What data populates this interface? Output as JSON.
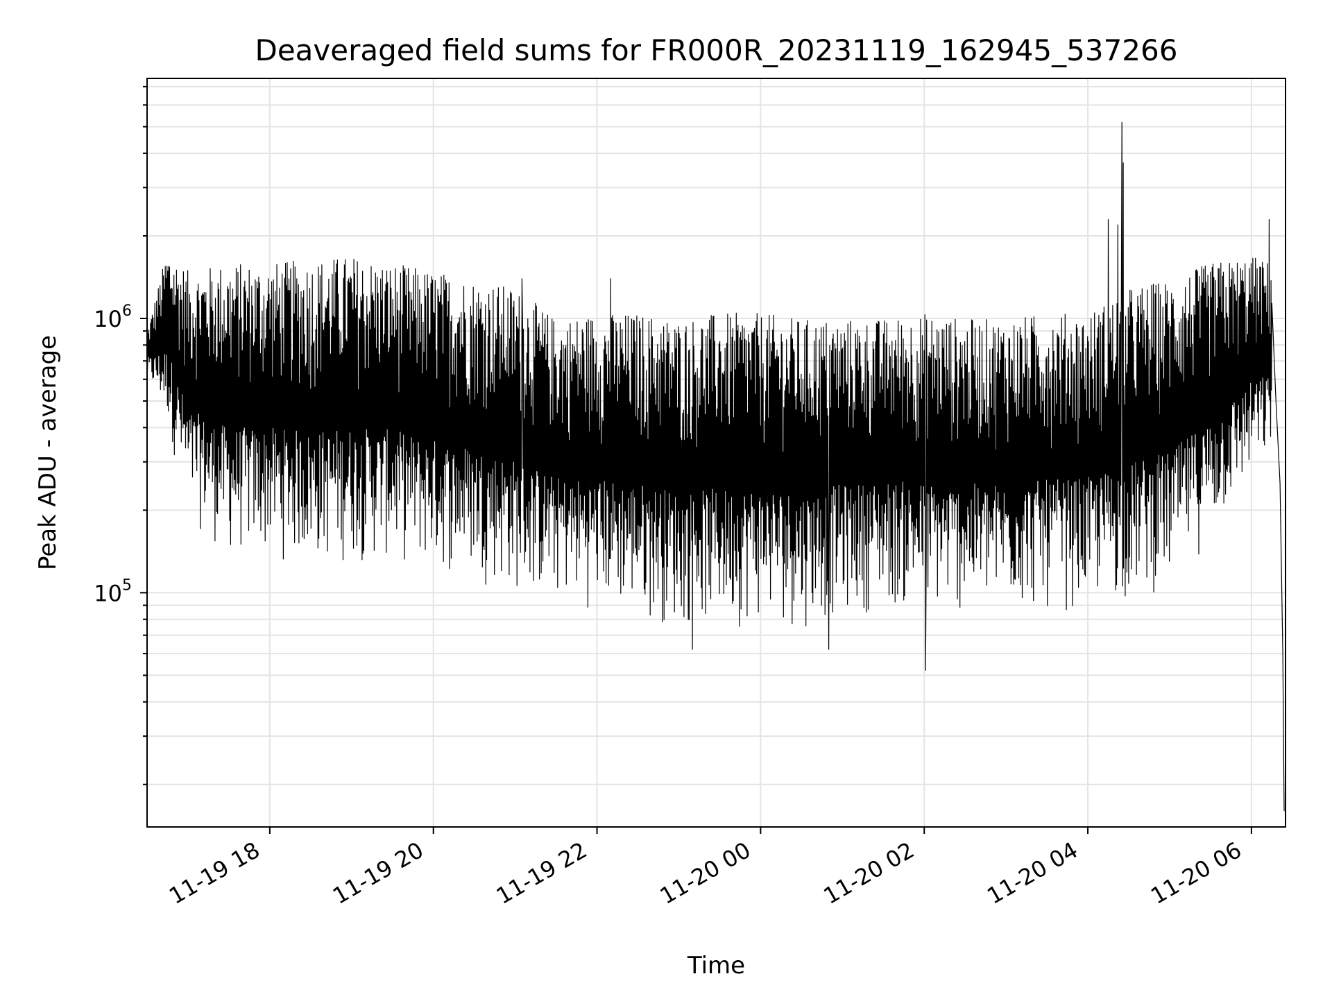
{
  "chart_data": {
    "type": "line",
    "title": "Deaveraged field sums for FR000R_20231119_162945_537266",
    "xlabel": "Time",
    "ylabel": "Peak ADU - average",
    "yscale": "log",
    "ylim": [
      14000,
      7500000
    ],
    "xlim": [
      "2023-11-19 16:30",
      "2023-11-20 06:25"
    ],
    "x_ticks": [
      "11-19 18",
      "11-19 20",
      "11-19 22",
      "11-20 00",
      "11-20 02",
      "11-20 04",
      "11-20 06"
    ],
    "y_ticks": [
      {
        "value": 100000,
        "base": "10",
        "exponent": "5"
      },
      {
        "value": 1000000,
        "base": "10",
        "exponent": "6"
      }
    ],
    "grid": true,
    "line_color": "#000000",
    "series": [
      {
        "name": "",
        "envelope": [
          {
            "x": "2023-11-19 16:30",
            "low": 600000,
            "high": 900000
          },
          {
            "x": "2023-11-19 16:45",
            "low": 400000,
            "high": 1800000
          },
          {
            "x": "2023-11-19 17:00",
            "low": 180000,
            "high": 1500000
          },
          {
            "x": "2023-11-19 17:30",
            "low": 130000,
            "high": 1600000
          },
          {
            "x": "2023-11-19 18:00",
            "low": 130000,
            "high": 1600000
          },
          {
            "x": "2023-11-19 18:30",
            "low": 120000,
            "high": 1650000
          },
          {
            "x": "2023-11-19 19:00",
            "low": 125000,
            "high": 1700000
          },
          {
            "x": "2023-11-19 19:30",
            "low": 125000,
            "high": 1600000
          },
          {
            "x": "2023-11-19 20:00",
            "low": 115000,
            "high": 1500000
          },
          {
            "x": "2023-11-19 20:30",
            "low": 110000,
            "high": 1400000
          },
          {
            "x": "2023-11-19 21:00",
            "low": 95000,
            "high": 1300000
          },
          {
            "x": "2023-11-19 21:30",
            "low": 90000,
            "high": 1000000
          },
          {
            "x": "2023-11-19 22:00",
            "low": 85000,
            "high": 1050000
          },
          {
            "x": "2023-11-19 22:30",
            "low": 80000,
            "high": 1050000
          },
          {
            "x": "2023-11-19 23:00",
            "low": 72000,
            "high": 1000000
          },
          {
            "x": "2023-11-19 23:30",
            "low": 72000,
            "high": 1050000
          },
          {
            "x": "2023-11-20 00:00",
            "low": 75000,
            "high": 1050000
          },
          {
            "x": "2023-11-20 00:30",
            "low": 72000,
            "high": 1000000
          },
          {
            "x": "2023-11-20 01:00",
            "low": 80000,
            "high": 1000000
          },
          {
            "x": "2023-11-20 01:30",
            "low": 85000,
            "high": 1000000
          },
          {
            "x": "2023-11-20 02:00",
            "low": 80000,
            "high": 1050000
          },
          {
            "x": "2023-11-20 02:30",
            "low": 80000,
            "high": 1000000
          },
          {
            "x": "2023-11-20 03:00",
            "low": 82000,
            "high": 1000000
          },
          {
            "x": "2023-11-20 03:30",
            "low": 82000,
            "high": 1050000
          },
          {
            "x": "2023-11-20 04:00",
            "low": 85000,
            "high": 1050000
          },
          {
            "x": "2023-11-20 04:30",
            "low": 90000,
            "high": 1300000
          },
          {
            "x": "2023-11-20 05:00",
            "low": 100000,
            "high": 1400000
          },
          {
            "x": "2023-11-20 05:30",
            "low": 150000,
            "high": 1600000
          },
          {
            "x": "2023-11-20 06:00",
            "low": 250000,
            "high": 1700000
          },
          {
            "x": "2023-11-20 06:15",
            "low": 300000,
            "high": 1600000
          }
        ],
        "spikes": [
          {
            "x": "2023-11-19 21:05",
            "y": 1400000
          },
          {
            "x": "2023-11-19 22:10",
            "y": 1400000
          },
          {
            "x": "2023-11-20 04:15",
            "y": 2300000
          },
          {
            "x": "2023-11-20 04:22",
            "y": 2200000
          },
          {
            "x": "2023-11-20 04:25",
            "y": 5200000
          },
          {
            "x": "2023-11-20 04:26",
            "y": 3700000
          },
          {
            "x": "2023-11-20 06:13",
            "y": 2300000
          }
        ],
        "dips": [
          {
            "x": "2023-11-20 02:01",
            "y": 52000
          },
          {
            "x": "2023-11-19 23:10",
            "y": 62000
          },
          {
            "x": "2023-11-20 00:50",
            "y": 62000
          }
        ],
        "tail": [
          {
            "x": "2023-11-20 06:18",
            "y": 500000
          },
          {
            "x": "2023-11-20 06:21",
            "y": 250000
          },
          {
            "x": "2023-11-20 06:23",
            "y": 60000
          },
          {
            "x": "2023-11-20 06:24",
            "y": 16000
          }
        ]
      }
    ]
  }
}
